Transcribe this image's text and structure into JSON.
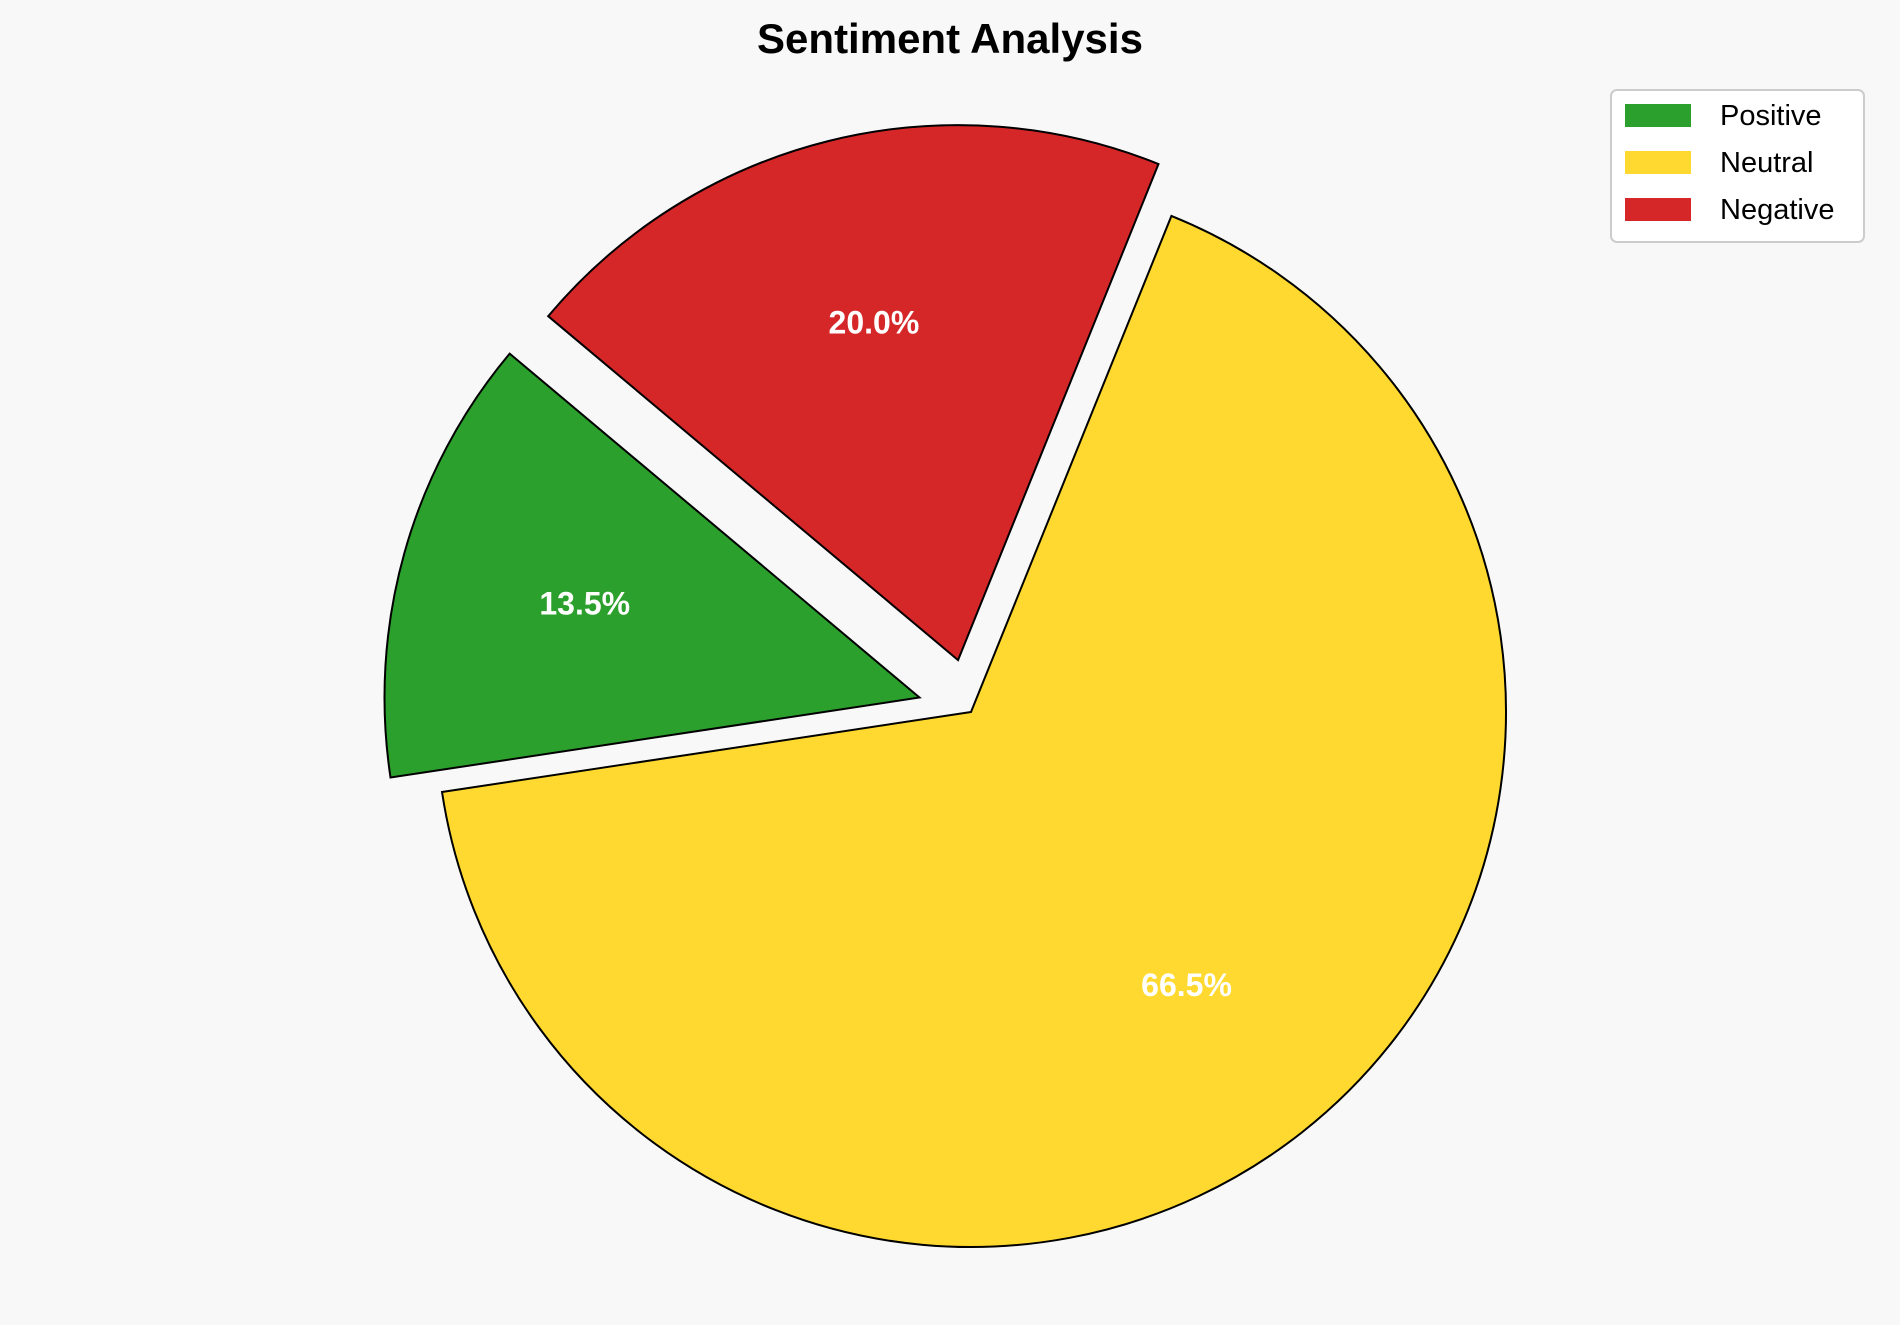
{
  "chart_data": {
    "type": "pie",
    "title": "Sentiment Analysis",
    "categories": [
      "Positive",
      "Neutral",
      "Negative"
    ],
    "values": [
      13.5,
      66.5,
      20.0
    ],
    "labels": [
      "13.5%",
      "66.5%",
      "20.0%"
    ],
    "colors": [
      "#2ca02c",
      "#ffd92f",
      "#d62728"
    ],
    "explode": [
      0.1,
      0,
      0.1
    ],
    "start_angle": 140,
    "direction": "counterclockwise",
    "legend": {
      "placement": "top-right",
      "entries": [
        "Positive",
        "Neutral",
        "Negative"
      ]
    }
  }
}
